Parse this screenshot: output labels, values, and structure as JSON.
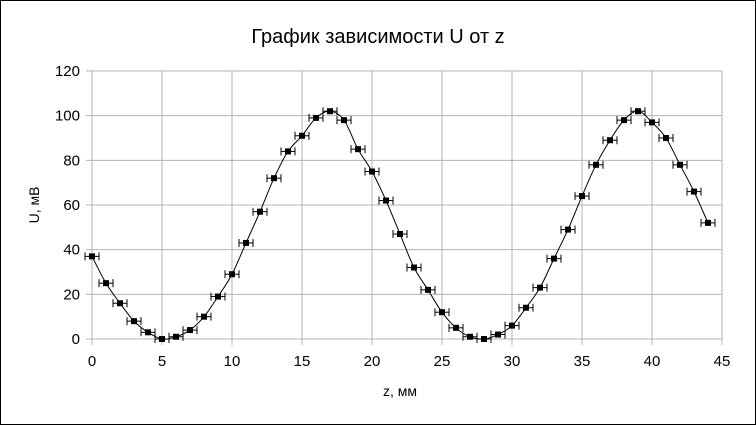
{
  "chart_data": {
    "type": "scatter",
    "title": "График зависимости U от z",
    "xlabel": "z, мм",
    "ylabel": "U, мВ",
    "xlim": [
      0,
      45
    ],
    "ylim": [
      0,
      120
    ],
    "x_ticks": [
      0,
      5,
      10,
      15,
      20,
      25,
      30,
      35,
      40,
      45
    ],
    "y_ticks": [
      0,
      20,
      40,
      60,
      80,
      100,
      120
    ],
    "grid": true,
    "legend": "none",
    "x_error": 0.5,
    "series": [
      {
        "marker": "square",
        "line": "smooth",
        "color": "#000000",
        "x": [
          0,
          1,
          2,
          3,
          4,
          5,
          6,
          7,
          8,
          9,
          10,
          11,
          12,
          13,
          14,
          15,
          16,
          17,
          18,
          19,
          20,
          21,
          22,
          23,
          24,
          25,
          26,
          27,
          28,
          29,
          30,
          31,
          32,
          33,
          34,
          35,
          36,
          37,
          38,
          39,
          40,
          41,
          42,
          43,
          44
        ],
        "y": [
          37,
          25,
          16,
          8,
          3,
          0,
          1,
          4,
          10,
          19,
          29,
          43,
          57,
          72,
          84,
          91,
          99,
          102,
          98,
          85,
          75,
          62,
          47,
          32,
          22,
          12,
          5,
          1,
          0,
          2,
          6,
          14,
          23,
          36,
          49,
          64,
          78,
          89,
          98,
          102,
          97,
          90,
          78,
          66,
          52
        ]
      }
    ]
  }
}
